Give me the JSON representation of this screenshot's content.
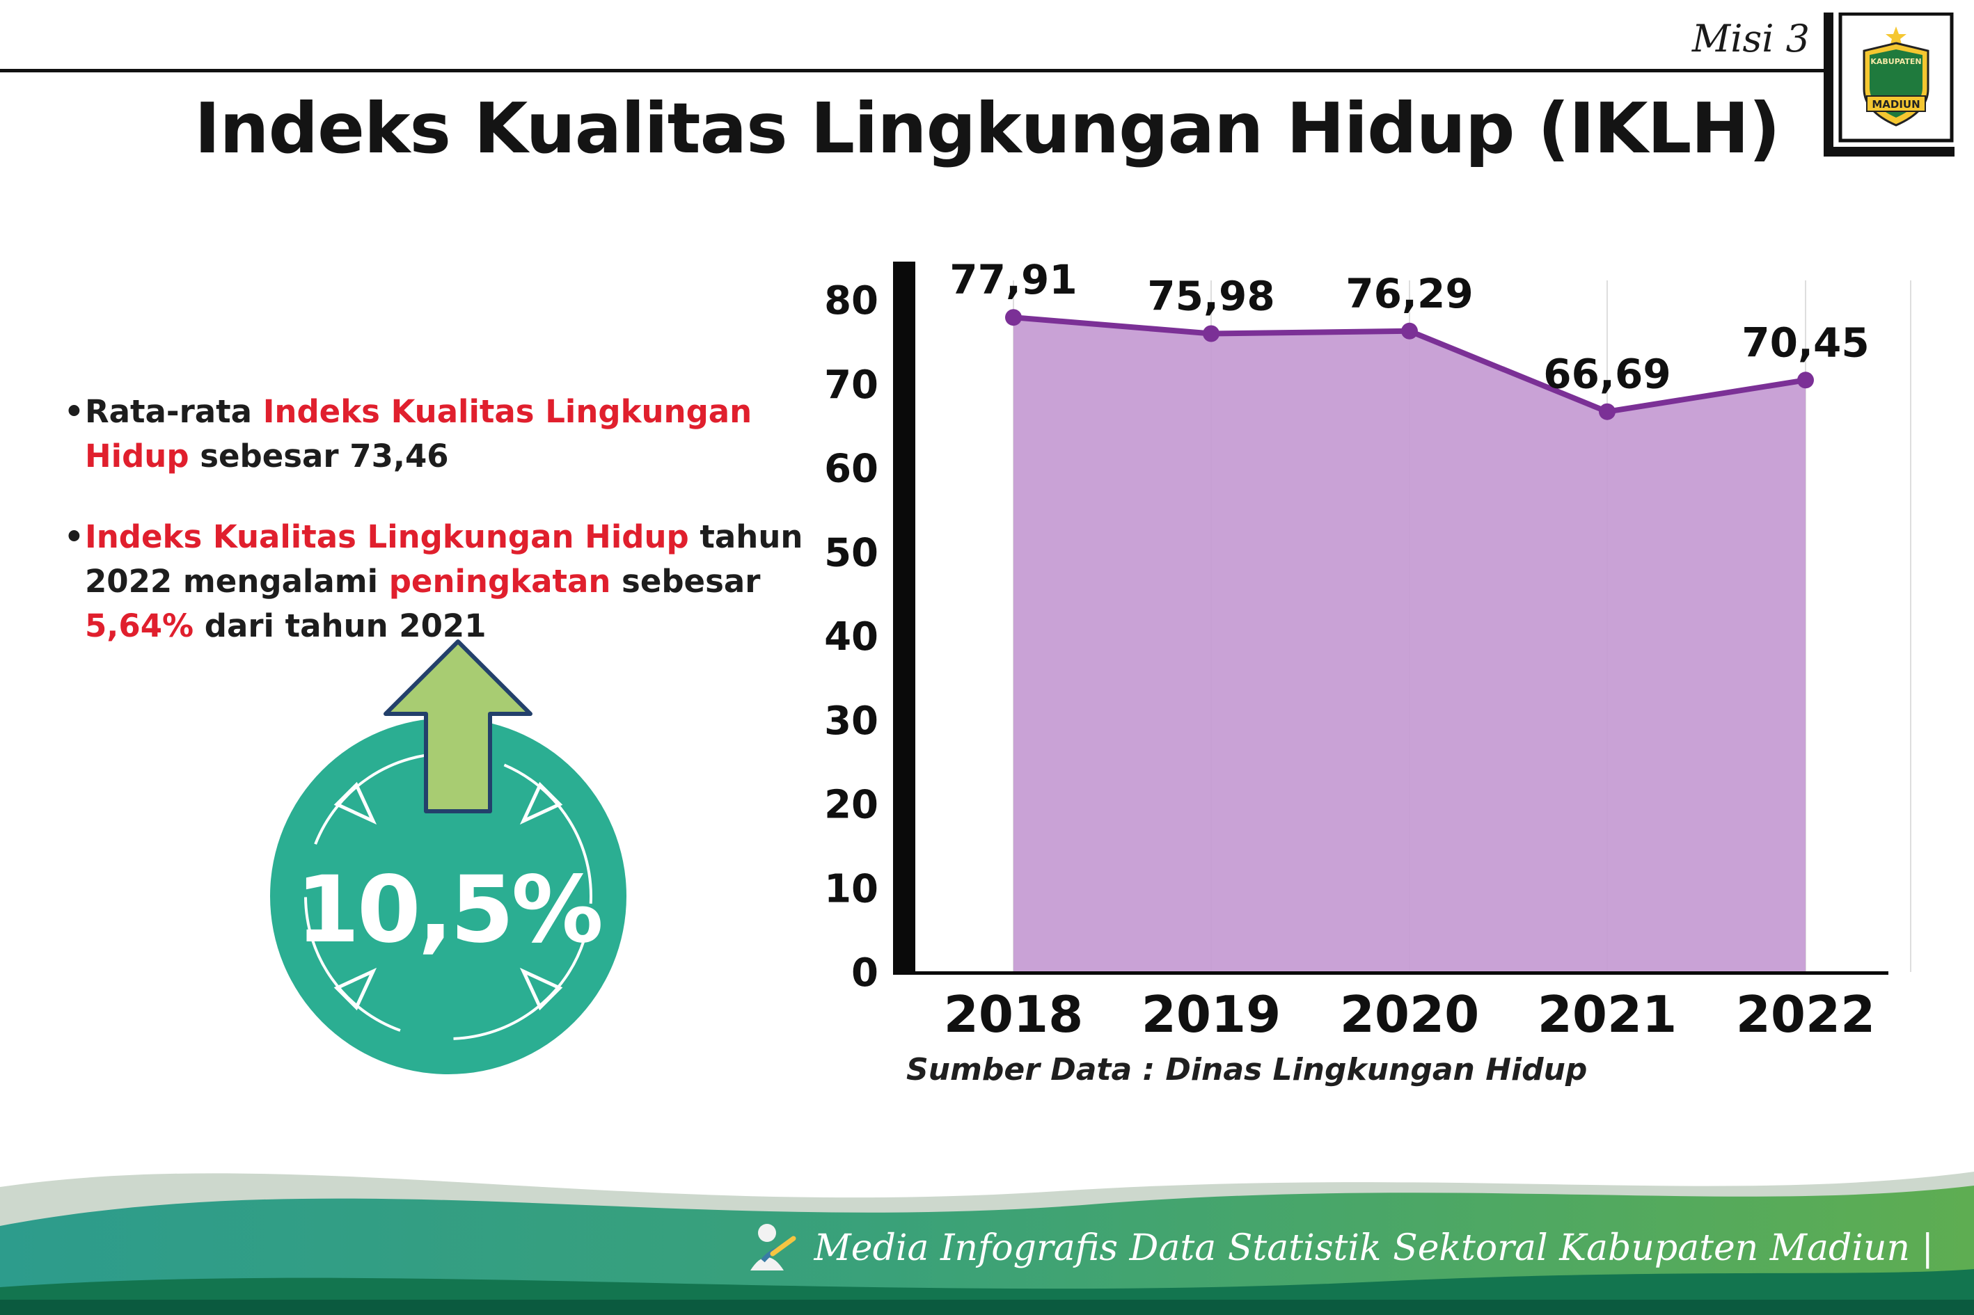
{
  "header": {
    "misi_label": "Misi 3",
    "title": "Indeks Kualitas Lingkungan Hidup (IKLH)",
    "logo": {
      "top": "KABUPATEN",
      "bottom": "MADIUN"
    }
  },
  "bullets": {
    "b1": {
      "pre": "Rata-rata ",
      "red": "Indeks Kualitas Lingkungan Hidup",
      "post": " sebesar 73,46"
    },
    "b2": {
      "red1": "Indeks Kualitas Lingkungan Hidup",
      "t1": " tahun 2022 mengalami ",
      "red2": "peningkatan",
      "t2": " sebesar ",
      "red3": "5,64%",
      "t3": " dari tahun 2021"
    }
  },
  "badge": {
    "value": "10,5%"
  },
  "chart_data": {
    "type": "area",
    "title": "Indeks Kualitas Lingkungan Hidup (IKLH)",
    "categories": [
      "2018",
      "2019",
      "2020",
      "2021",
      "2022"
    ],
    "values": [
      77.91,
      75.98,
      76.29,
      66.69,
      70.45
    ],
    "value_labels": [
      "77,91",
      "75,98",
      "76,29",
      "66,69",
      "70,45"
    ],
    "ylim": [
      0,
      80
    ],
    "yticks": [
      0,
      10,
      20,
      30,
      40,
      50,
      60,
      70,
      80
    ],
    "grid": "vertical-light",
    "legend": "none",
    "line_color": "#7b3096",
    "fill_color": "#c49ad2",
    "source": "Sumber Data : Dinas Lingkungan Hidup"
  },
  "footer": {
    "credit": "Media Infografis Data Statistik Sektoral Kabupaten Madiun |"
  },
  "colors": {
    "accent_red": "#e01f2d",
    "badge_teal": "#2bae92",
    "arrow_green": "#a8cc72",
    "arrow_outline": "#23406b",
    "footer_teal": "#2d9c8c",
    "footer_green": "#5ead52",
    "footer_dark_green": "#13754f",
    "footer_bottom_strip": "#0b5a3f"
  }
}
